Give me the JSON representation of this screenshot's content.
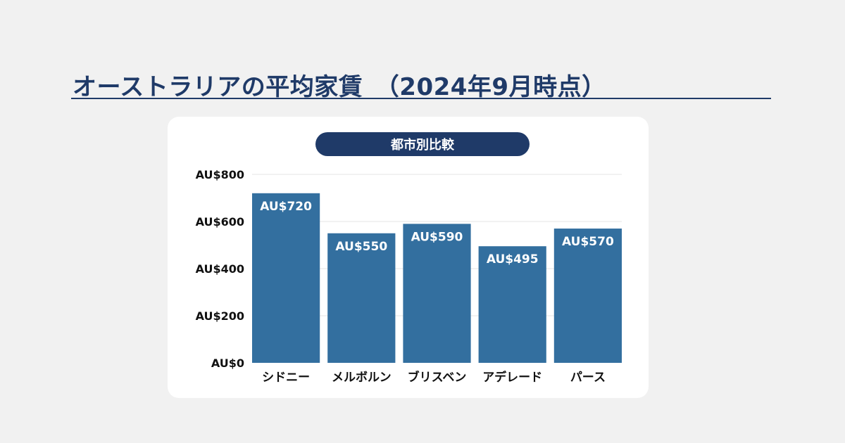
{
  "page": {
    "title": "オーストラリアの平均家賃　（2024年9月時点）",
    "chart_heading": "都市別比較"
  },
  "colors": {
    "background": "#f1f1f1",
    "title": "#1f3a68",
    "bar": "#336f9f",
    "pill": "#1f3a68"
  },
  "chart_data": {
    "type": "bar",
    "title": "都市別比較",
    "categories": [
      "シドニー",
      "メルボルン",
      "ブリスベン",
      "アデレード",
      "パース"
    ],
    "values": [
      720,
      550,
      590,
      495,
      570
    ],
    "data_labels": [
      "AU$720",
      "AU$550",
      "AU$590",
      "AU$495",
      "AU$570"
    ],
    "ylim": [
      0,
      800
    ],
    "yticks": [
      0,
      200,
      400,
      600,
      800
    ],
    "ytick_labels": [
      "AU$0",
      "AU$200",
      "AU$400",
      "AU$600",
      "AU$800"
    ],
    "grid": true,
    "legend": "none"
  }
}
